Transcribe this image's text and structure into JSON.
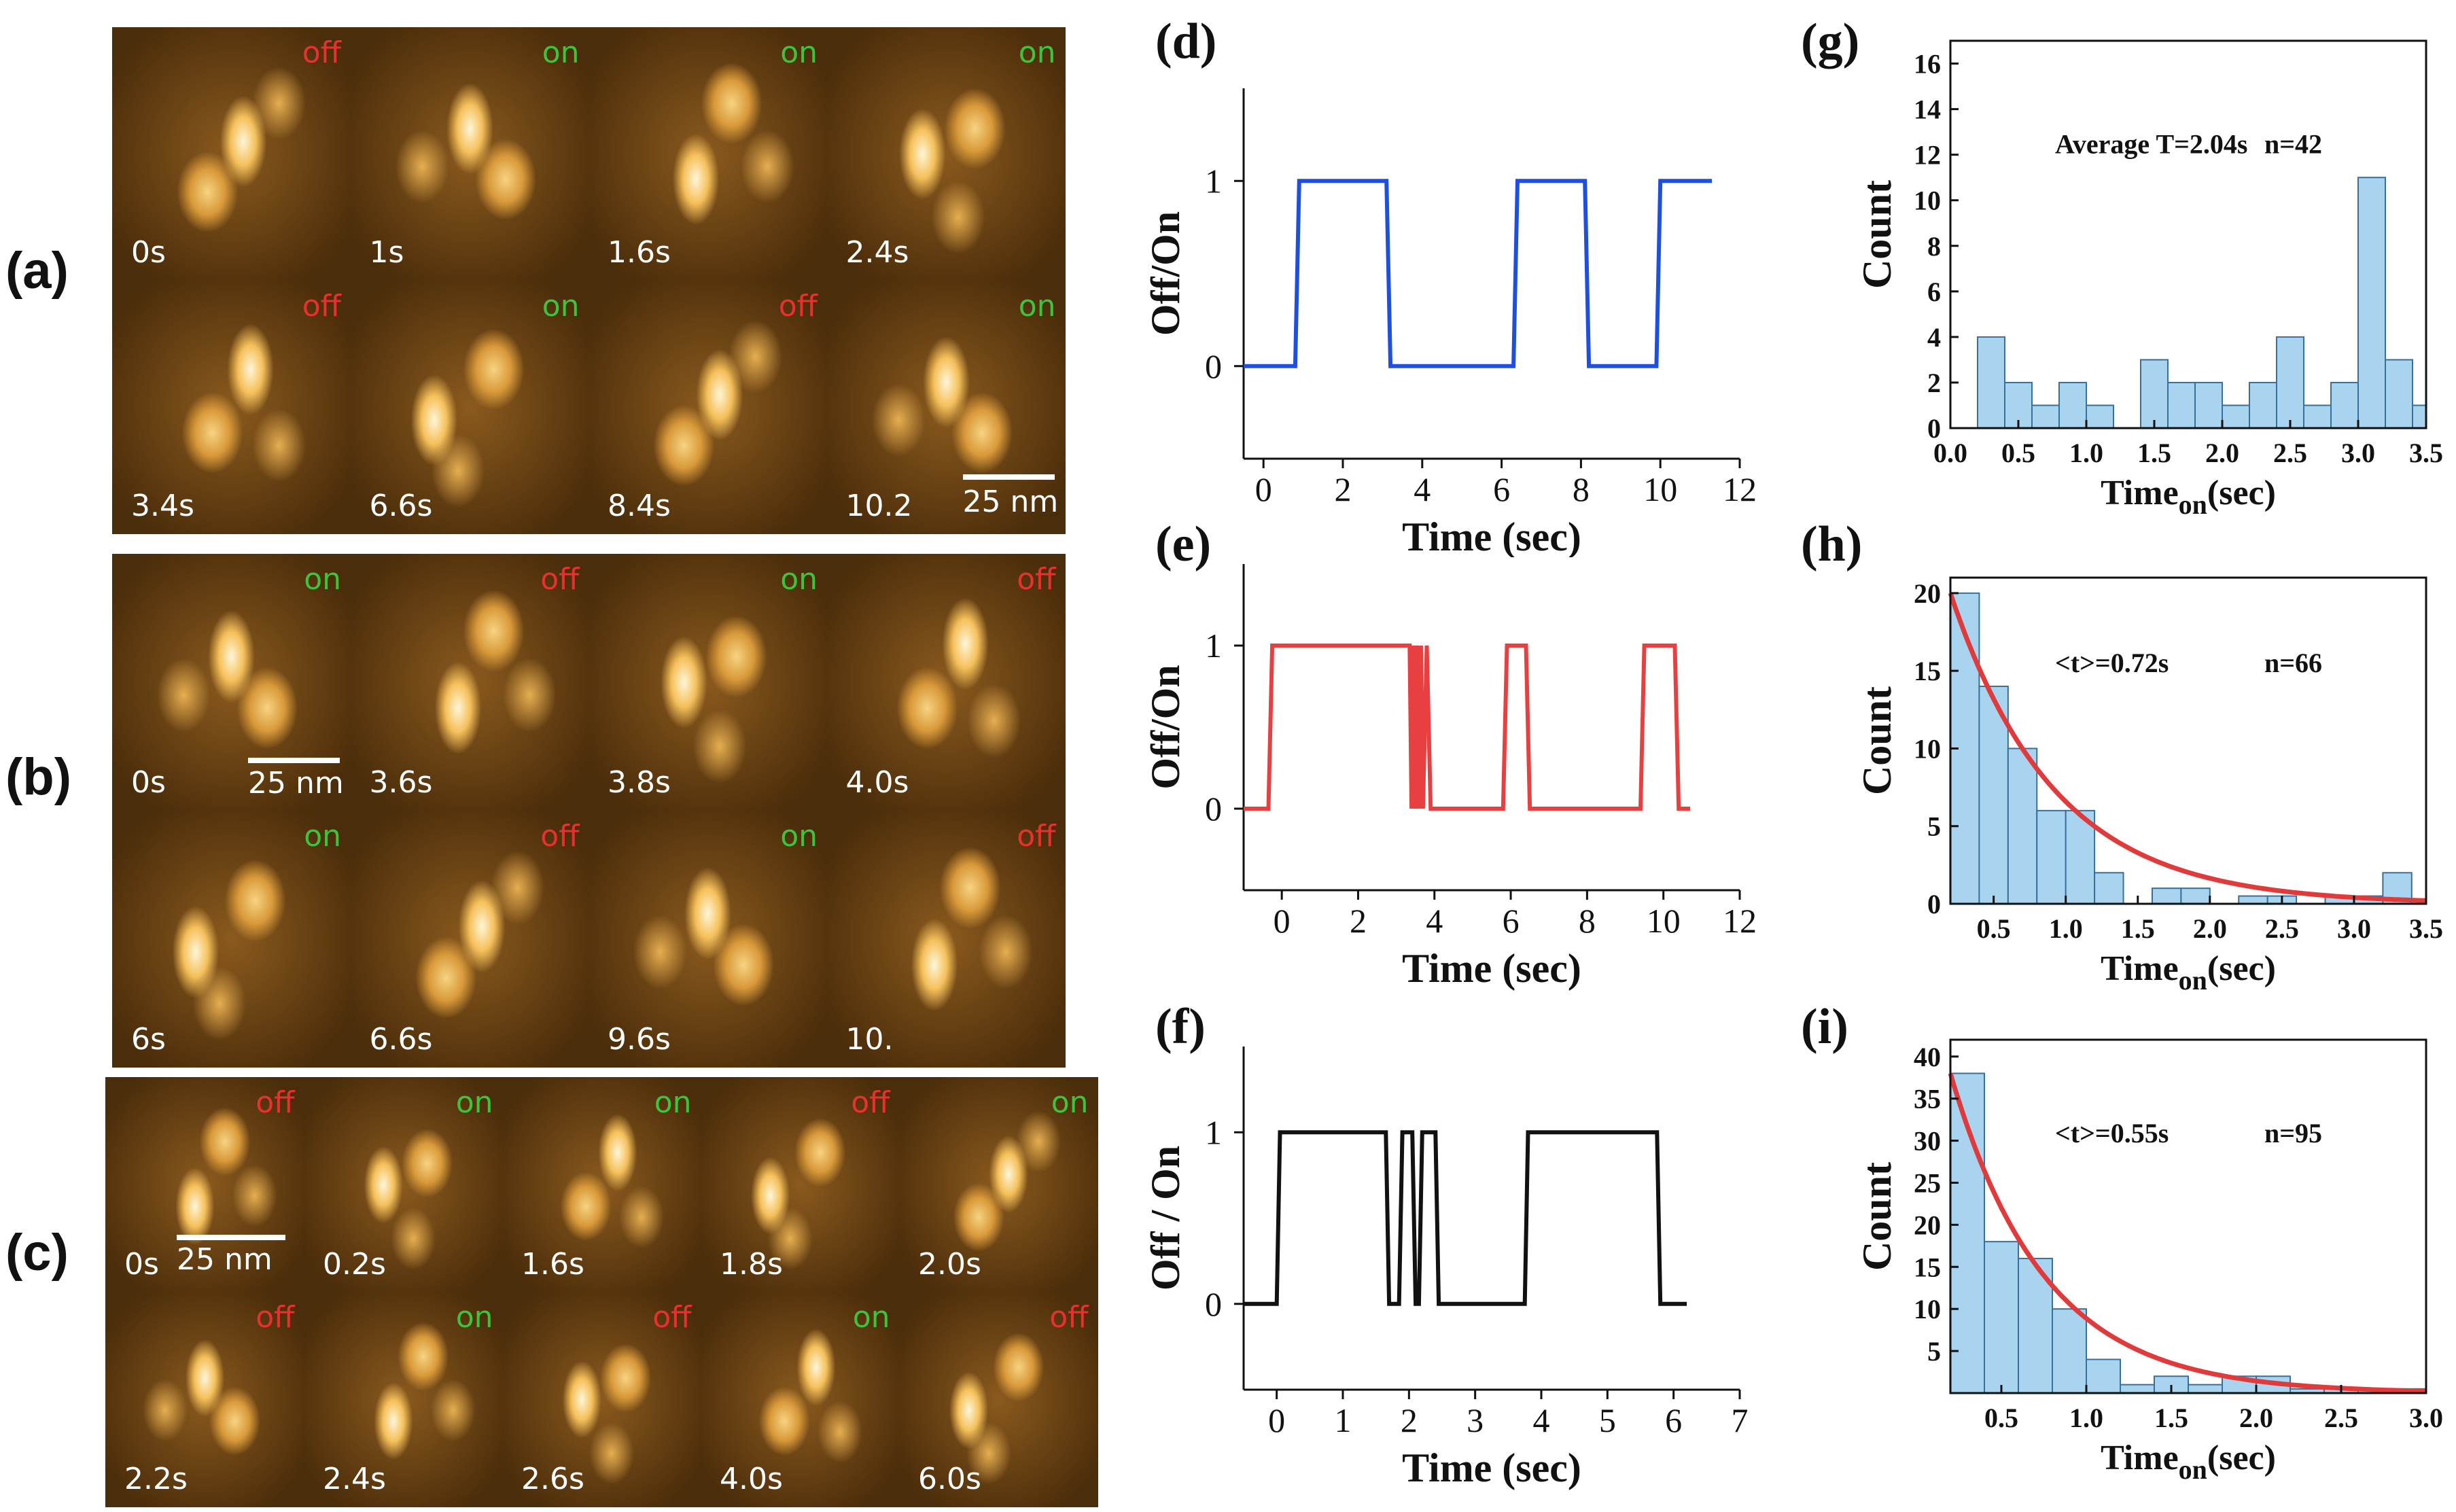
{
  "panels": {
    "a": {
      "label": "(a)",
      "frames": [
        {
          "time": "0s",
          "state": "off"
        },
        {
          "time": "1s",
          "state": "on"
        },
        {
          "time": "1.6s",
          "state": "on"
        },
        {
          "time": "2.4s",
          "state": "on"
        },
        {
          "time": "3.4s",
          "state": "off"
        },
        {
          "time": "6.6s",
          "state": "on"
        },
        {
          "time": "8.4s",
          "state": "off"
        },
        {
          "time": "10.2",
          "state": "on"
        }
      ],
      "scale": "25 nm"
    },
    "b": {
      "label": "(b)",
      "frames": [
        {
          "time": "0s",
          "state": "on"
        },
        {
          "time": "3.6s",
          "state": "off"
        },
        {
          "time": "3.8s",
          "state": "on"
        },
        {
          "time": "4.0s",
          "state": "off"
        },
        {
          "time": "6s",
          "state": "on"
        },
        {
          "time": "6.6s",
          "state": "off"
        },
        {
          "time": "9.6s",
          "state": "on"
        },
        {
          "time": "10.",
          "state": "off"
        }
      ],
      "scale": "25 nm"
    },
    "c": {
      "label": "(c)",
      "frames": [
        {
          "time": "0s",
          "state": "off"
        },
        {
          "time": "0.2s",
          "state": "on"
        },
        {
          "time": "1.6s",
          "state": "on"
        },
        {
          "time": "1.8s",
          "state": "off"
        },
        {
          "time": "2.0s",
          "state": "on"
        },
        {
          "time": "2.2s",
          "state": "off"
        },
        {
          "time": "2.4s",
          "state": "on"
        },
        {
          "time": "2.6s",
          "state": "off"
        },
        {
          "time": "4.0s",
          "state": "on"
        },
        {
          "time": "6.0s",
          "state": "off"
        }
      ],
      "scale": "25 nm"
    }
  },
  "colors": {
    "on": "#3cc43c",
    "off": "#e8302e",
    "trace_d": "#1f4fe0",
    "trace_e": "#e84040",
    "trace_f": "#111111",
    "bar_fill": "#a9d4ef",
    "bar_edge": "#3a6f9a",
    "fit": "#e03a3a"
  },
  "chart_data": [
    {
      "id": "d",
      "label": "(d)",
      "type": "line",
      "xlabel": "Time (sec)",
      "ylabel": "Off/On",
      "xlim": [
        -0.5,
        12
      ],
      "ylim": [
        -0.5,
        1.5
      ],
      "xticks": [
        0,
        2,
        4,
        6,
        8,
        10,
        12
      ],
      "yticks": [
        0,
        1
      ],
      "x": [
        -0.5,
        0.8,
        0.9,
        3.1,
        3.2,
        6.3,
        6.4,
        8.1,
        8.2,
        9.9,
        10.0,
        11.3
      ],
      "y": [
        0,
        0,
        1,
        1,
        0,
        0,
        1,
        1,
        0,
        0,
        1,
        1
      ]
    },
    {
      "id": "e",
      "label": "(e)",
      "type": "line",
      "xlabel": "Time (sec)",
      "ylabel": "Off/On",
      "xlim": [
        -1,
        12
      ],
      "ylim": [
        -0.5,
        1.5
      ],
      "xticks": [
        0,
        2,
        4,
        6,
        8,
        10,
        12
      ],
      "yticks": [
        0,
        1
      ],
      "x": [
        -1,
        -0.35,
        -0.25,
        3.35,
        3.4,
        3.45,
        3.5,
        3.55,
        3.6,
        3.65,
        3.7,
        3.8,
        3.9,
        5.8,
        5.9,
        6.4,
        6.5,
        9.4,
        9.5,
        10.3,
        10.4,
        10.7
      ],
      "y": [
        0,
        0,
        1,
        1,
        0,
        1,
        0,
        1,
        0,
        1,
        0,
        1,
        0,
        0,
        1,
        1,
        0,
        0,
        1,
        1,
        0,
        0
      ]
    },
    {
      "id": "f",
      "label": "(f)",
      "type": "line",
      "xlabel": "Time (sec)",
      "ylabel": "Off / On",
      "xlim": [
        -0.5,
        7
      ],
      "ylim": [
        -0.5,
        1.5
      ],
      "xticks": [
        0,
        1,
        2,
        3,
        4,
        5,
        6,
        7
      ],
      "yticks": [
        0,
        1
      ],
      "x": [
        -0.5,
        0.0,
        0.05,
        1.65,
        1.7,
        1.85,
        1.9,
        2.05,
        2.1,
        2.15,
        2.2,
        2.4,
        2.45,
        3.75,
        3.8,
        5.75,
        5.8,
        6.2
      ],
      "y": [
        0,
        0,
        1,
        1,
        0,
        0,
        1,
        1,
        0,
        0,
        1,
        1,
        0,
        0,
        1,
        1,
        0,
        0
      ]
    },
    {
      "id": "g",
      "label": "(g)",
      "type": "bar",
      "xlabel": "Time",
      "xlabel_sub": "on",
      "xlabel_tail": "(sec)",
      "ylabel": "Count",
      "xlim": [
        0,
        3.5
      ],
      "ylim": [
        0,
        17
      ],
      "xticks": [
        "0.0",
        "0.5",
        "1.0",
        "1.5",
        "2.0",
        "2.5",
        "3.0",
        "3.5"
      ],
      "yticks": [
        "0",
        "2",
        "4",
        "6",
        "8",
        "10",
        "12",
        "14",
        "16"
      ],
      "bin_start": 0.2,
      "bin_width": 0.2,
      "values": [
        4,
        2,
        1,
        2,
        1,
        0,
        3,
        2,
        2,
        1,
        2,
        4,
        1,
        2,
        11,
        3,
        1
      ],
      "annotation_left": "Average T=2.04s",
      "annotation_right": "n=42"
    },
    {
      "id": "h",
      "label": "(h)",
      "type": "bar",
      "xlabel": "Time",
      "xlabel_sub": "on",
      "xlabel_tail": "(sec)",
      "ylabel": "Count",
      "xlim": [
        0.2,
        3.5
      ],
      "ylim": [
        0,
        21
      ],
      "xticks": [
        "0.5",
        "1.0",
        "1.5",
        "2.0",
        "2.5",
        "3.0",
        "3.5"
      ],
      "yticks": [
        "0",
        "5",
        "10",
        "15",
        "20"
      ],
      "bin_start": 0.2,
      "bin_width": 0.2,
      "values": [
        20,
        14,
        10,
        6,
        6,
        2,
        0,
        1,
        1,
        0,
        0.5,
        0.5,
        0,
        0.5,
        0.5,
        2
      ],
      "fit": {
        "a": 20,
        "tau": 0.72,
        "x0": 0.2
      },
      "annotation_left": "<t>=0.72s",
      "annotation_right": "n=66"
    },
    {
      "id": "i",
      "label": "(i)",
      "type": "bar",
      "xlabel": "Time",
      "xlabel_sub": "on",
      "xlabel_tail": "(sec)",
      "ylabel": "Count",
      "xlim": [
        0.2,
        3.0
      ],
      "ylim": [
        0,
        42
      ],
      "xticks": [
        "0.5",
        "1.0",
        "1.5",
        "2.0",
        "2.5",
        "3.0"
      ],
      "yticks": [
        "5",
        "10",
        "15",
        "20",
        "25",
        "30",
        "35",
        "40"
      ],
      "bin_start": 0.2,
      "bin_width": 0.2,
      "values": [
        38,
        18,
        16,
        10,
        4,
        1,
        2,
        1,
        2,
        2,
        0.5,
        0.5,
        0.5,
        0.5
      ],
      "fit": {
        "a": 38,
        "tau": 0.55,
        "x0": 0.2
      },
      "annotation_left": "<t>=0.55s",
      "annotation_right": "n=95"
    }
  ]
}
